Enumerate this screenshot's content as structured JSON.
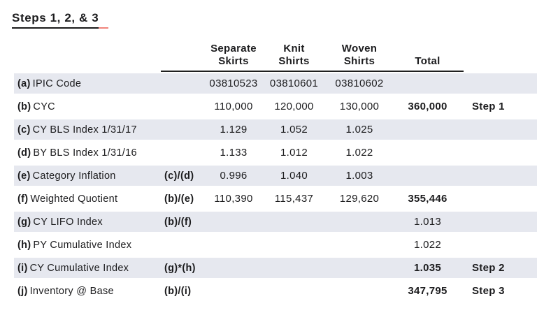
{
  "page": {
    "title": "Steps 1, 2, & 3"
  },
  "colors": {
    "row_shade": "#e6e8ef",
    "text": "#1c1c1e",
    "title_underline": "#1a1a1a",
    "title_underline_tail": "#f0847b"
  },
  "table": {
    "headers": [
      {
        "line1": "Separate",
        "line2": "Skirts"
      },
      {
        "line1": "Knit",
        "line2": "Shirts"
      },
      {
        "line1": "Woven",
        "line2": "Shirts"
      },
      {
        "line1": "",
        "line2": "Total"
      }
    ],
    "rows": [
      {
        "prefix": "(a)",
        "label": "IPIC Code",
        "formula": "",
        "values": [
          "03810523",
          "03810601",
          "03810602"
        ],
        "total": "",
        "step": ""
      },
      {
        "prefix": "(b)",
        "label": "CYC",
        "formula": "",
        "values": [
          "110,000",
          "120,000",
          "130,000"
        ],
        "total": "360,000",
        "step": "Step 1"
      },
      {
        "prefix": "(c)",
        "label": "CY BLS Index 1/31/17",
        "formula": "",
        "values": [
          "1.129",
          "1.052",
          "1.025"
        ],
        "total": "",
        "step": ""
      },
      {
        "prefix": "(d)",
        "label": "BY BLS Index 1/31/16",
        "formula": "",
        "values": [
          "1.133",
          "1.012",
          "1.022"
        ],
        "total": "",
        "step": ""
      },
      {
        "prefix": "(e)",
        "label": "Category Inflation",
        "formula": "(c)/(d)",
        "values": [
          "0.996",
          "1.040",
          "1.003"
        ],
        "total": "",
        "step": ""
      },
      {
        "prefix": "(f)",
        "label": "Weighted Quotient",
        "formula": "(b)/(e)",
        "values": [
          "110,390",
          "115,437",
          "129,620"
        ],
        "total": "355,446",
        "step": ""
      },
      {
        "prefix": "(g)",
        "label": "CY LIFO Index",
        "formula": "(b)/(f)",
        "values": [
          "",
          "",
          ""
        ],
        "total": "1.013",
        "step": ""
      },
      {
        "prefix": "(h)",
        "label": "PY Cumulative Index",
        "formula": "",
        "values": [
          "",
          "",
          ""
        ],
        "total": "1.022",
        "step": ""
      },
      {
        "prefix": "(i)",
        "label": "CY Cumulative Index",
        "formula": "(g)*(h)",
        "values": [
          "",
          "",
          ""
        ],
        "total": "1.035",
        "step": "Step 2"
      },
      {
        "prefix": "(j)",
        "label": "Inventory @ Base",
        "formula": "(b)/(i)",
        "values": [
          "",
          "",
          ""
        ],
        "total": "347,795",
        "step": "Step 3"
      }
    ]
  }
}
